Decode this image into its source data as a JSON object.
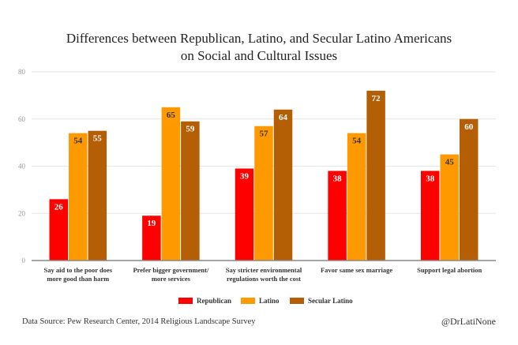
{
  "chart_data": {
    "type": "bar",
    "title": "Differences between Republican, Latino, and Secular Latino Americans on Social and Cultural Issues",
    "title_lines": [
      "Differences between Republican, Latino, and Secular Latino Americans",
      "on Social and Cultural Issues"
    ],
    "categories": [
      [
        "Say aid to the poor does",
        "more good than harm"
      ],
      [
        "Prefer bigger government/",
        "more services"
      ],
      [
        "Say stricter environmental",
        "regulations worth the cost"
      ],
      [
        "Favor same sex marriage"
      ],
      [
        "Support legal abortion"
      ]
    ],
    "series": [
      {
        "name": "Republican",
        "color": "#ff0000",
        "label_color": "#ffffff",
        "values": [
          26,
          19,
          39,
          38,
          38
        ]
      },
      {
        "name": "Latino",
        "color": "#ff9900",
        "label_color": "#333333",
        "values": [
          54,
          65,
          57,
          54,
          45
        ]
      },
      {
        "name": "Secular Latino",
        "color": "#b45f06",
        "label_color": "#ffffff",
        "values": [
          55,
          59,
          64,
          72,
          60
        ]
      }
    ],
    "ylim": [
      0,
      80
    ],
    "yticks": [
      0,
      20,
      40,
      60,
      80
    ],
    "grid": true,
    "legend": "bottom",
    "xlabel": "",
    "ylabel": ""
  },
  "footer": {
    "source": "Data Source: Pew Research Center, 2014 Religious Landscape Survey",
    "handle": "@DrLatiNone"
  }
}
